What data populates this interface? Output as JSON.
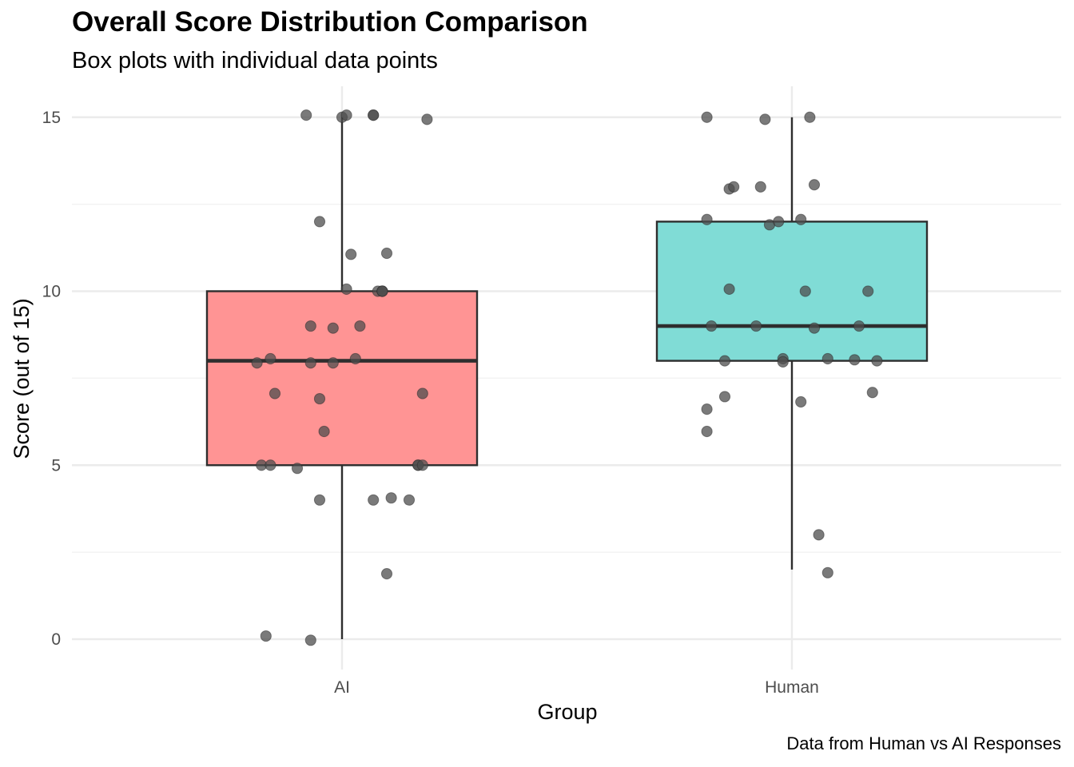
{
  "chart_data": {
    "type": "boxplot",
    "title": "Overall Score Distribution Comparison",
    "subtitle": "Box plots with individual data points",
    "caption": "Data from Human vs AI Responses",
    "xlabel": "Group",
    "ylabel": "Score (out of 15)",
    "ylim": [
      -0.8,
      15.9
    ],
    "yticks": [
      0,
      5,
      10,
      15
    ],
    "grid": true,
    "categories": [
      "AI",
      "Human"
    ],
    "colors": {
      "AI": "#ff9494",
      "Human": "#80dcd6",
      "box_stroke": "#2e2e2e",
      "point": "#4d4d4d"
    },
    "boxes": [
      {
        "group": "AI",
        "min": 0,
        "q1": 5,
        "median": 8,
        "q3": 10,
        "max": 15
      },
      {
        "group": "Human",
        "min": 2,
        "q1": 8,
        "median": 9,
        "q3": 12,
        "max": 15
      }
    ],
    "points": [
      {
        "group": "AI",
        "values": [
          15,
          15,
          15,
          15,
          15,
          15,
          12,
          11,
          11,
          10,
          10,
          10,
          10,
          10,
          9,
          9,
          9,
          8,
          8,
          8,
          8,
          8,
          7,
          7,
          7,
          6,
          5,
          5,
          5,
          5,
          5,
          5,
          4,
          4,
          4,
          4,
          2,
          0,
          0
        ],
        "jitter": [
          -0.08,
          0.0,
          0.01,
          0.07,
          0.07,
          0.19,
          -0.05,
          0.02,
          0.1,
          0.01,
          0.08,
          0.09,
          0.09,
          0.09,
          -0.02,
          -0.07,
          0.04,
          -0.16,
          -0.19,
          -0.02,
          0.03,
          -0.07,
          -0.15,
          0.18,
          -0.05,
          -0.04,
          -0.18,
          -0.1,
          0.17,
          0.17,
          0.18,
          -0.16,
          -0.05,
          0.07,
          0.11,
          0.15,
          0.1,
          -0.17,
          -0.07
        ],
        "offset": [
          0.1,
          0.0,
          0.1,
          0.1,
          0.1,
          -0.1,
          0.0,
          0.1,
          0.15,
          0.1,
          0.0,
          0.0,
          0.0,
          0.0,
          -0.1,
          0.0,
          0.0,
          0.1,
          -0.1,
          -0.1,
          0.1,
          -0.1,
          0.1,
          0.1,
          -0.15,
          -0.05,
          0.0,
          -0.15,
          0.0,
          0.0,
          0.0,
          0.0,
          0.0,
          0.0,
          0.1,
          0.0,
          -0.2,
          0.15,
          -0.05
        ]
      },
      {
        "group": "Human",
        "values": [
          15,
          15,
          15,
          13,
          13,
          13,
          13,
          12,
          12,
          12,
          12,
          10,
          10,
          10,
          9,
          9,
          9,
          9,
          8,
          8,
          8,
          8,
          8,
          8,
          7,
          7,
          7,
          7,
          6,
          3,
          2
        ],
        "jitter": [
          -0.19,
          -0.06,
          0.04,
          -0.14,
          -0.13,
          -0.07,
          0.05,
          -0.19,
          -0.05,
          -0.03,
          0.02,
          -0.14,
          0.03,
          0.17,
          -0.18,
          -0.08,
          0.05,
          0.15,
          -0.15,
          -0.02,
          -0.02,
          0.08,
          0.14,
          0.19,
          -0.15,
          -0.19,
          0.18,
          0.02,
          -0.19,
          0.06,
          0.08
        ],
        "offset": [
          0.0,
          -0.1,
          0.0,
          -0.1,
          0.0,
          0.0,
          0.1,
          0.1,
          -0.15,
          0.0,
          0.1,
          0.1,
          0.0,
          0.0,
          0.0,
          0.0,
          -0.1,
          0.0,
          0.0,
          0.1,
          -0.05,
          0.1,
          0.05,
          0.0,
          -0.05,
          -0.65,
          0.15,
          -0.3,
          -0.05,
          0.0,
          -0.15
        ]
      }
    ]
  }
}
